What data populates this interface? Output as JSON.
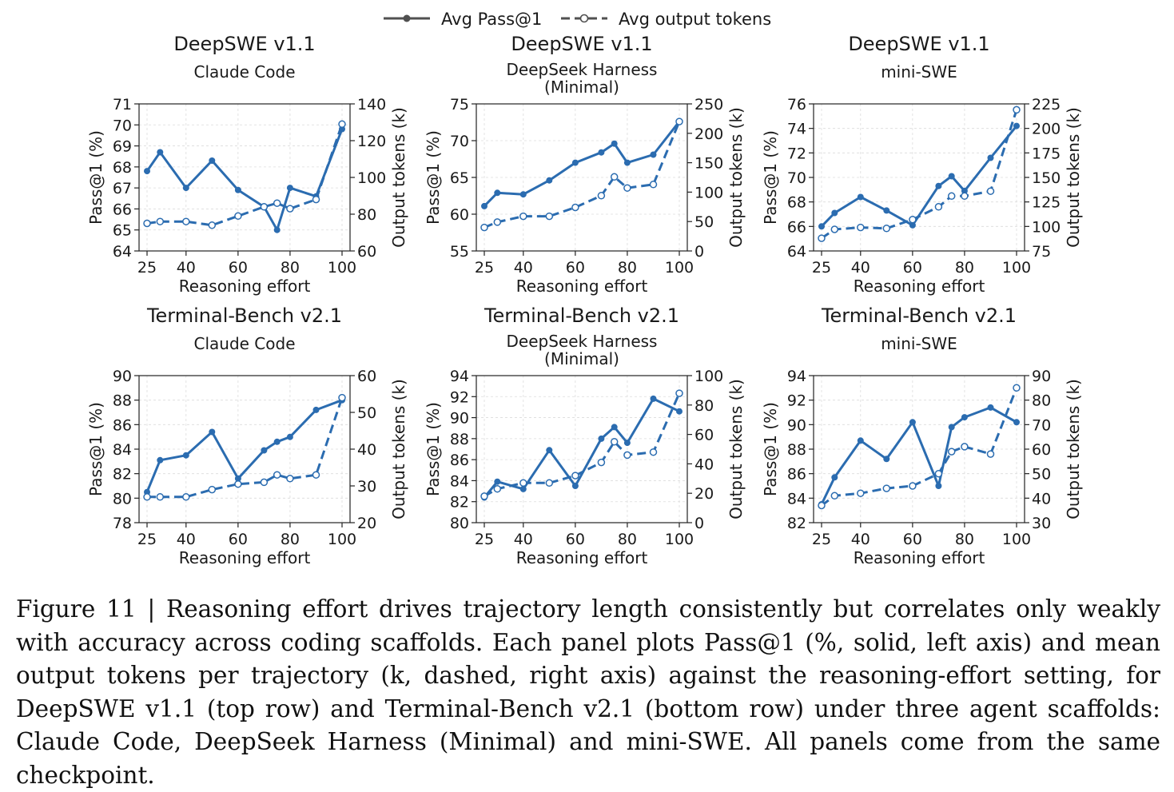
{
  "legend": {
    "solid_label": "Avg Pass@1",
    "dashed_label": "Avg output tokens"
  },
  "colors": {
    "line": "#2b6cb0",
    "grid": "#dcdcdc",
    "axis": "#222222"
  },
  "caption": "Figure 11 | Reasoning effort drives trajectory length consistently but correlates only weakly with accuracy across coding scaffolds. Each panel plots Pass@1 (%, solid, left axis) and mean output tokens per trajectory (k, dashed, right axis) against the reasoning-effort setting, for DeepSWE v1.1 (top row) and Terminal-Bench v2.1 (bottom row) under three agent scaffolds: Claude Code, DeepSeek Harness (Minimal) and mini-SWE. All panels come from the same checkpoint.",
  "chart_data": [
    {
      "type": "line",
      "title": "DeepSWE v1.1",
      "subtitle": [
        "Claude Code"
      ],
      "xlabel": "Reasoning effort",
      "ylabel": "Pass@1 (%)",
      "y2label": "Output tokens (k)",
      "xlim": [
        25,
        100
      ],
      "xticks": [
        25,
        40,
        60,
        80,
        100
      ],
      "ylim": [
        64,
        71
      ],
      "yticks": [
        64,
        65,
        66,
        67,
        68,
        69,
        70,
        71
      ],
      "y2lim": [
        60,
        140
      ],
      "y2ticks": [
        60,
        80,
        100,
        120,
        140
      ],
      "x": [
        25,
        30,
        40,
        50,
        60,
        70,
        75,
        80,
        90,
        100
      ],
      "series": [
        {
          "name": "Avg Pass@1",
          "axis": "left",
          "style": "solid",
          "values": [
            67.8,
            68.7,
            67.0,
            68.3,
            66.9,
            66.1,
            65.0,
            67.0,
            66.6,
            69.8
          ]
        },
        {
          "name": "Avg output tokens",
          "axis": "right",
          "style": "dashed",
          "values": [
            75,
            76,
            76,
            74,
            79,
            84,
            86,
            83,
            88,
            129
          ]
        }
      ]
    },
    {
      "type": "line",
      "title": "DeepSWE v1.1",
      "subtitle": [
        "DeepSeek Harness",
        "(Minimal)"
      ],
      "xlabel": "Reasoning effort",
      "ylabel": "Pass@1 (%)",
      "y2label": "Output tokens (k)",
      "xlim": [
        25,
        100
      ],
      "xticks": [
        25,
        40,
        60,
        80,
        100
      ],
      "ylim": [
        55,
        75
      ],
      "yticks": [
        55,
        60,
        65,
        70,
        75
      ],
      "y2lim": [
        0,
        250
      ],
      "y2ticks": [
        0,
        50,
        100,
        150,
        200,
        250
      ],
      "x": [
        25,
        30,
        40,
        50,
        60,
        70,
        75,
        80,
        90,
        100
      ],
      "series": [
        {
          "name": "Avg Pass@1",
          "axis": "left",
          "style": "solid",
          "values": [
            61.1,
            62.9,
            62.7,
            64.6,
            67.0,
            68.4,
            69.6,
            67.0,
            68.1,
            72.6
          ]
        },
        {
          "name": "Avg output tokens",
          "axis": "right",
          "style": "dashed",
          "values": [
            40,
            49,
            59,
            59,
            74,
            94,
            126,
            107,
            113,
            220
          ]
        }
      ]
    },
    {
      "type": "line",
      "title": "DeepSWE v1.1",
      "subtitle": [
        "mini-SWE"
      ],
      "xlabel": "Reasoning effort",
      "ylabel": "Pass@1 (%)",
      "y2label": "Output tokens (k)",
      "xlim": [
        25,
        100
      ],
      "xticks": [
        25,
        40,
        60,
        80,
        100
      ],
      "ylim": [
        64,
        76
      ],
      "yticks": [
        64,
        66,
        68,
        70,
        72,
        74,
        76
      ],
      "y2lim": [
        75,
        225
      ],
      "y2ticks": [
        75,
        100,
        125,
        150,
        175,
        200,
        225
      ],
      "x": [
        25,
        30,
        40,
        50,
        60,
        70,
        75,
        80,
        90,
        100
      ],
      "series": [
        {
          "name": "Avg Pass@1",
          "axis": "left",
          "style": "solid",
          "values": [
            66.0,
            67.1,
            68.4,
            67.3,
            66.1,
            69.3,
            70.1,
            68.9,
            71.6,
            74.2
          ]
        },
        {
          "name": "Avg output tokens",
          "axis": "right",
          "style": "dashed",
          "values": [
            88,
            97,
            99,
            98,
            107,
            120,
            131,
            131,
            136,
            219
          ]
        }
      ]
    },
    {
      "type": "line",
      "title": "Terminal-Bench v2.1",
      "subtitle": [
        "Claude Code"
      ],
      "xlabel": "Reasoning effort",
      "ylabel": "Pass@1 (%)",
      "y2label": "Output tokens (k)",
      "xlim": [
        25,
        100
      ],
      "xticks": [
        25,
        40,
        60,
        80,
        100
      ],
      "ylim": [
        78,
        90
      ],
      "yticks": [
        78,
        80,
        82,
        84,
        86,
        88,
        90
      ],
      "y2lim": [
        20,
        60
      ],
      "y2ticks": [
        20,
        30,
        40,
        50,
        60
      ],
      "x": [
        25,
        30,
        40,
        50,
        60,
        70,
        75,
        80,
        90,
        100
      ],
      "series": [
        {
          "name": "Avg Pass@1",
          "axis": "left",
          "style": "solid",
          "values": [
            80.5,
            83.1,
            83.5,
            85.4,
            81.6,
            83.9,
            84.6,
            85.0,
            87.2,
            88.0
          ]
        },
        {
          "name": "Avg output tokens",
          "axis": "right",
          "style": "dashed",
          "values": [
            27,
            27,
            27,
            29,
            30.5,
            31,
            33,
            32,
            33,
            54
          ]
        }
      ]
    },
    {
      "type": "line",
      "title": "Terminal-Bench v2.1",
      "subtitle": [
        "DeepSeek Harness",
        "(Minimal)"
      ],
      "xlabel": "Reasoning effort",
      "ylabel": "Pass@1 (%)",
      "y2label": "Output tokens (k)",
      "xlim": [
        25,
        100
      ],
      "xticks": [
        25,
        40,
        60,
        80,
        100
      ],
      "ylim": [
        80,
        94
      ],
      "yticks": [
        80,
        82,
        84,
        86,
        88,
        90,
        92,
        94
      ],
      "y2lim": [
        0,
        100
      ],
      "y2ticks": [
        0,
        20,
        40,
        60,
        80,
        100
      ],
      "x": [
        25,
        30,
        40,
        50,
        60,
        70,
        75,
        80,
        90,
        100
      ],
      "series": [
        {
          "name": "Avg Pass@1",
          "axis": "left",
          "style": "solid",
          "values": [
            82.4,
            83.9,
            83.2,
            86.9,
            83.5,
            88.0,
            89.1,
            87.6,
            91.8,
            90.6
          ]
        },
        {
          "name": "Avg output tokens",
          "axis": "right",
          "style": "dashed",
          "values": [
            18,
            23,
            27,
            27,
            32,
            41,
            55,
            46,
            48,
            88
          ]
        }
      ]
    },
    {
      "type": "line",
      "title": "Terminal-Bench v2.1",
      "subtitle": [
        "mini-SWE"
      ],
      "xlabel": "Reasoning effort",
      "ylabel": "Pass@1 (%)",
      "y2label": "Output tokens (k)",
      "xlim": [
        25,
        100
      ],
      "xticks": [
        25,
        40,
        60,
        80,
        100
      ],
      "ylim": [
        82,
        94
      ],
      "yticks": [
        82,
        84,
        86,
        88,
        90,
        92,
        94
      ],
      "y2lim": [
        30,
        90
      ],
      "y2ticks": [
        30,
        40,
        50,
        60,
        70,
        80,
        90
      ],
      "x": [
        25,
        30,
        40,
        50,
        60,
        70,
        75,
        80,
        90,
        100
      ],
      "series": [
        {
          "name": "Avg Pass@1",
          "axis": "left",
          "style": "solid",
          "values": [
            83.5,
            85.7,
            88.7,
            87.2,
            90.2,
            85.0,
            89.8,
            90.6,
            91.4,
            90.2
          ]
        },
        {
          "name": "Avg output tokens",
          "axis": "right",
          "style": "dashed",
          "values": [
            37,
            41,
            42,
            44,
            45,
            50,
            59,
            61,
            58,
            85
          ]
        }
      ]
    }
  ]
}
